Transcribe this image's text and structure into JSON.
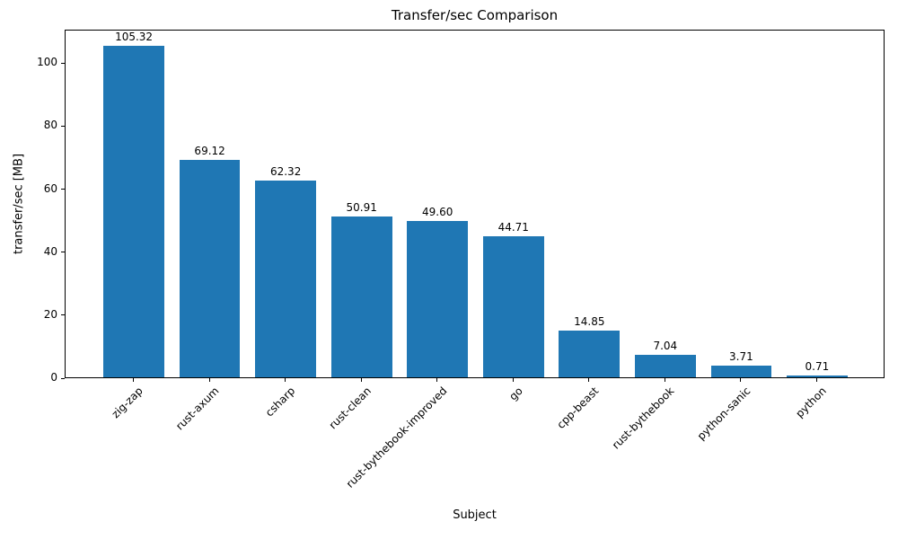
{
  "chart_data": {
    "type": "bar",
    "title": "Transfer/sec Comparison",
    "xlabel": "Subject",
    "ylabel": "transfer/sec [MB]",
    "categories": [
      "zig-zap",
      "rust-axum",
      "csharp",
      "rust-clean",
      "rust-bythebook-improved",
      "go",
      "cpp-beast",
      "rust-bythebook",
      "python-sanic",
      "python"
    ],
    "values": [
      105.32,
      69.12,
      62.32,
      50.91,
      49.6,
      44.71,
      14.85,
      7.04,
      3.71,
      0.71
    ],
    "value_labels": [
      "105.32",
      "69.12",
      "62.32",
      "50.91",
      "49.60",
      "44.71",
      "14.85",
      "7.04",
      "3.71",
      "0.71"
    ],
    "yticks": [
      0,
      20,
      40,
      60,
      80,
      100
    ],
    "ylim": [
      0,
      110.6
    ],
    "bar_color": "#1f77b4",
    "grid": false,
    "legend_position": "none",
    "x_tick_rotation_deg": 45
  }
}
